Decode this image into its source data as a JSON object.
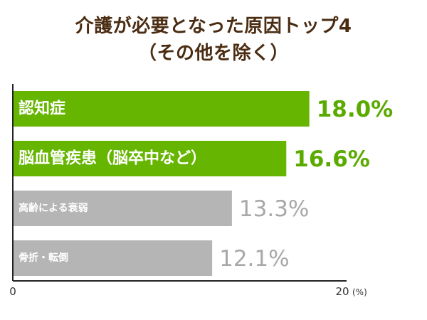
{
  "chart_data": {
    "type": "bar",
    "orientation": "horizontal",
    "title": "介護が必要となった原因トップ4",
    "subtitle": "（その他を除く）",
    "categories": [
      "認知症",
      "脳血管疾患（脳卒中など）",
      "高齢による衰弱",
      "骨折・転倒"
    ],
    "values": [
      18.0,
      16.6,
      13.3,
      12.1
    ],
    "value_labels": [
      "18.0%",
      "16.6%",
      "13.3%",
      "12.1%"
    ],
    "xlim": [
      0,
      20
    ],
    "x_tick_labels": [
      "0",
      "20"
    ],
    "x_unit": "(%)",
    "grid": false,
    "colors": {
      "highlight_bar": "#66b500",
      "muted_bar": "#b5b5b5",
      "highlight_value": "#5aaa00",
      "muted_value": "#a8a8a8",
      "title": "#4a2c12",
      "axis": "#222222"
    },
    "highlighted": [
      true,
      true,
      false,
      false
    ]
  }
}
